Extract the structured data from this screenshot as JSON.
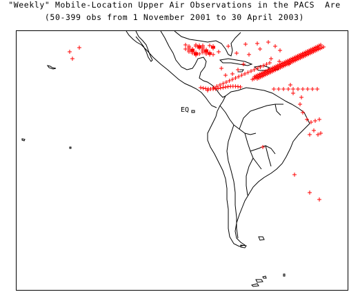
{
  "title": {
    "line1": "\"Weekly\" Mobile-Location Upper Air Observations in the PACS  Are",
    "line2": "(50-399 obs from 1 November 2001 to 30 April 2003)"
  },
  "map": {
    "region": "Central and South America",
    "equator_label": "EQ",
    "marker_symbol": "+",
    "colors": {
      "observation": "#ff0000",
      "coastline": "#000000",
      "background": "#ffffff"
    }
  }
}
